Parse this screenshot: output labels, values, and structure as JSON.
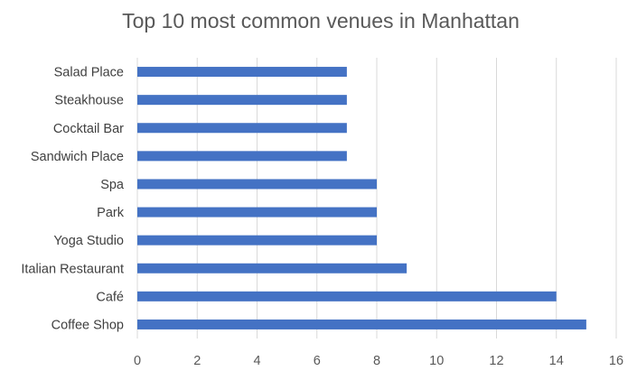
{
  "chart_data": {
    "type": "bar",
    "orientation": "horizontal",
    "title": "Top 10 most common venues in Manhattan",
    "xlabel": "",
    "ylabel": "",
    "categories": [
      "Salad Place",
      "Steakhouse",
      "Cocktail Bar",
      "Sandwich Place",
      "Spa",
      "Park",
      "Yoga Studio",
      "Italian Restaurant",
      "Café",
      "Coffee Shop"
    ],
    "values": [
      7,
      7,
      7,
      7,
      8,
      8,
      8,
      9,
      14,
      15
    ],
    "xlim": [
      0,
      16
    ],
    "xticks": [
      0,
      2,
      4,
      6,
      8,
      10,
      12,
      14,
      16
    ],
    "grid": "vertical major gridlines",
    "legend": "none",
    "colors": {
      "bar": "#4472c4",
      "grid": "#d9d9d9",
      "text": "#595959"
    }
  }
}
